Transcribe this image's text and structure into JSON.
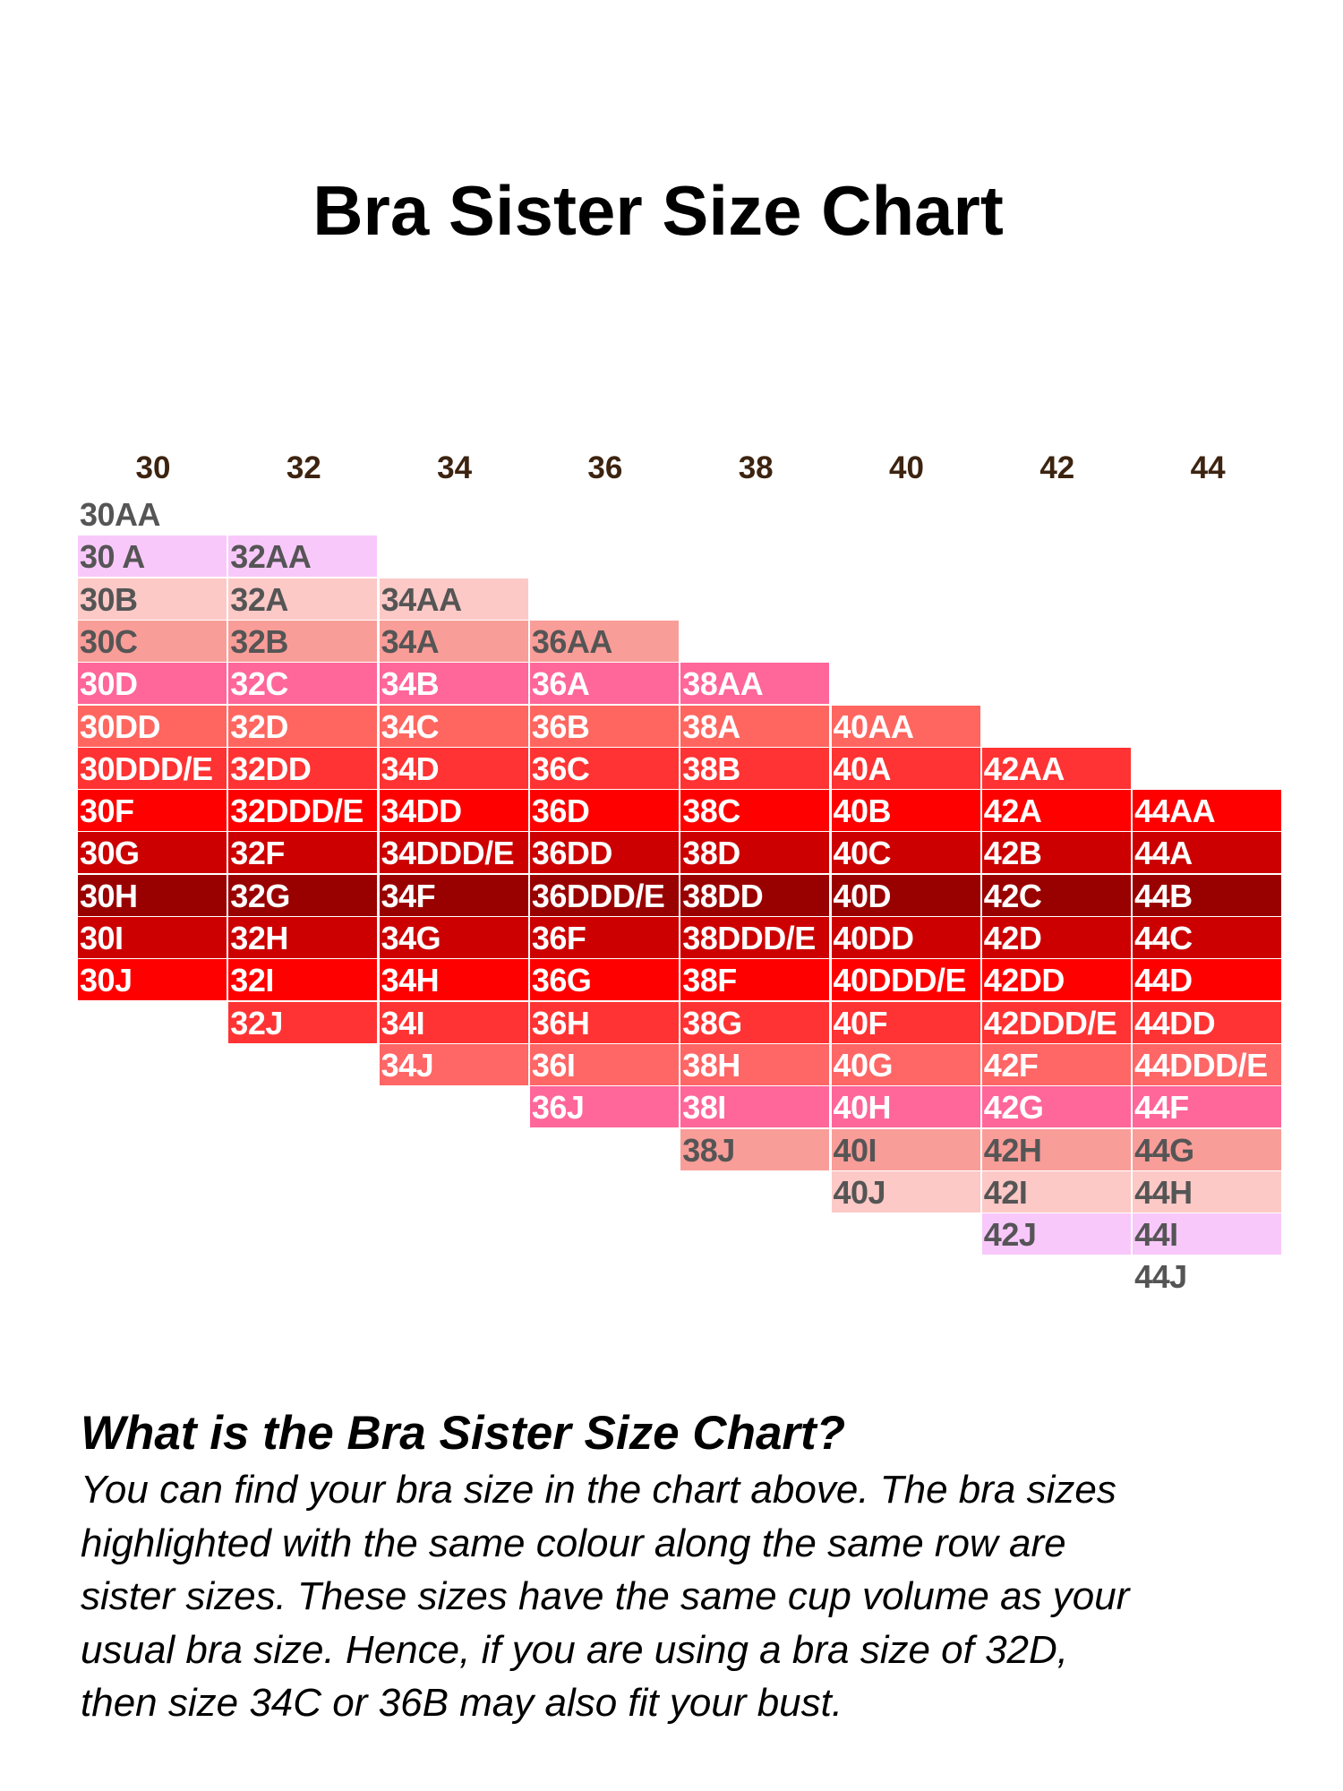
{
  "chart_data": {
    "type": "table",
    "title": "Bra Sister Size Chart",
    "columns": [
      "30",
      "32",
      "34",
      "36",
      "38",
      "40",
      "42",
      "44"
    ],
    "cells": [
      [
        "30AA",
        "30 A",
        "30B",
        "30C",
        "30D",
        "30DD",
        "30DDD/E",
        "30F",
        "30G",
        "30H",
        "30I",
        "30J"
      ],
      [
        "32AA",
        "32A",
        "32B",
        "32C",
        "32D",
        "32DD",
        "32DDD/E",
        "32F",
        "32G",
        "32H",
        "32I",
        "32J"
      ],
      [
        "34AA",
        "34A",
        "34B",
        "34C",
        "34D",
        "34DD",
        "34DDD/E",
        "34F",
        "34G",
        "34H",
        "34I",
        "34J"
      ],
      [
        "36AA",
        "36A",
        "36B",
        "36C",
        "36D",
        "36DD",
        "36DDD/E",
        "36F",
        "36G",
        "36H",
        "36I",
        "36J"
      ],
      [
        "38AA",
        "38A",
        "38B",
        "38C",
        "38D",
        "38DD",
        "38DDD/E",
        "38F",
        "38G",
        "38H",
        "38I",
        "38J"
      ],
      [
        "40AA",
        "40A",
        "40B",
        "40C",
        "40D",
        "40DD",
        "40DDD/E",
        "40F",
        "40G",
        "40H",
        "40I",
        "40J"
      ],
      [
        "42AA",
        "42A",
        "42B",
        "42C",
        "42D",
        "42DD",
        "42DDD/E",
        "42F",
        "42G",
        "42H",
        "42I",
        "42J"
      ],
      [
        "44AA",
        "44A",
        "44B",
        "44C",
        "44D",
        "44DD",
        "44DDD/E",
        "44F",
        "44G",
        "44H",
        "44I",
        "44J"
      ]
    ],
    "row_colors": [
      "#ffffff",
      "#f9c8fb",
      "#fcc9c6",
      "#f99d98",
      "#ff6699",
      "#ff6660",
      "#ff3333",
      "#ff0000",
      "#cc0000",
      "#990000",
      "#cc0000",
      "#ff0000",
      "#ff3333",
      "#ff6666",
      "#ff6699",
      "#f99d98",
      "#fcc9c6",
      "#f9c8fb",
      "#ffffff"
    ],
    "text_dark": "#555555",
    "text_light": "#ffffff"
  },
  "description": {
    "heading": "What is the Bra Sister Size Chart?",
    "lines": [
      "You can find your bra size in the chart above. The bra sizes",
      "highlighted with the same colour along the same row are",
      "sister sizes. These sizes have the same cup volume as your",
      "usual bra size. Hence, if you are using a bra size of 32D,",
      "then size 34C or 36B may also fit your bust."
    ]
  }
}
